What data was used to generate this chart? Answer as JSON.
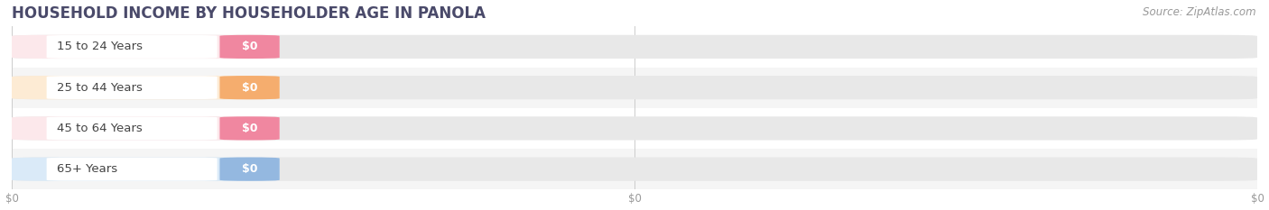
{
  "title": "HOUSEHOLD INCOME BY HOUSEHOLDER AGE IN PANOLA",
  "source": "Source: ZipAtlas.com",
  "categories": [
    "15 to 24 Years",
    "25 to 44 Years",
    "45 to 64 Years",
    "65+ Years"
  ],
  "values": [
    0,
    0,
    0,
    0
  ],
  "bar_colors": [
    "#f087a0",
    "#f5ad6e",
    "#f087a0",
    "#94b8e0"
  ],
  "bar_bg_color": "#e8e8e8",
  "label_bg_colors": [
    "#fce8eb",
    "#fdebd4",
    "#fce8eb",
    "#daeaf8"
  ],
  "value_labels": [
    "$0",
    "$0",
    "$0",
    "$0"
  ],
  "x_tick_labels": [
    "$0",
    "$0",
    "$0"
  ],
  "background_color": "#ffffff",
  "title_color": "#4a4a6a",
  "title_fontsize": 12,
  "label_fontsize": 9.5,
  "source_fontsize": 8.5,
  "bar_height": 0.58,
  "row_colors": [
    "#ffffff",
    "#f5f5f5",
    "#ffffff",
    "#f5f5f5"
  ],
  "grid_color": "#cccccc",
  "tick_color": "#999999"
}
